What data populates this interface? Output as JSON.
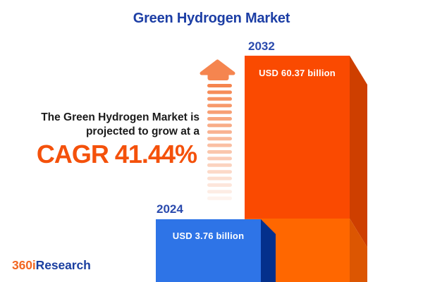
{
  "title": "Green Hydrogen Market",
  "tagline": {
    "line1": "The Green Hydrogen Market is",
    "line2": "projected to grow at a",
    "cagr": "CAGR 41.44%"
  },
  "bars": [
    {
      "year": "2024",
      "value_label": "USD 3.76 billion",
      "face_color": "#2E74E7",
      "side_color": "#04308C"
    },
    {
      "year": "2032",
      "value_label": "USD 60.37 billion",
      "face_color": "#FA4A01",
      "side_color": "#CE3F00",
      "lower_face_color": "#FF6700",
      "lower_side_color": "#DC5602"
    }
  ],
  "colors": {
    "title_blue": "#1C3EA5",
    "year_blue": "#2A4AAD",
    "accent_orange": "#F4510B",
    "text_dark": "#1B1B1B",
    "arrow_orange": "#F5854F",
    "background": "#FFFFFF",
    "value_text": "#FFFFFF"
  },
  "logo": {
    "prefix": "360i",
    "suffix": "Research",
    "prefix_color": "#F26722",
    "suffix_color": "#1B3FA0"
  },
  "chart_data": {
    "type": "bar",
    "title": "Green Hydrogen Market",
    "categories": [
      "2024",
      "2032"
    ],
    "values": [
      3.76,
      60.37
    ],
    "unit": "USD billion",
    "value_labels": [
      "USD 3.76 billion",
      "USD 60.37 billion"
    ],
    "cagr_percent": 41.44,
    "annotation": "The Green Hydrogen Market is projected to grow at a CAGR 41.44%",
    "legend": "none",
    "grid": false,
    "style": "3d-bars, year labels above bars, values inside bars"
  }
}
